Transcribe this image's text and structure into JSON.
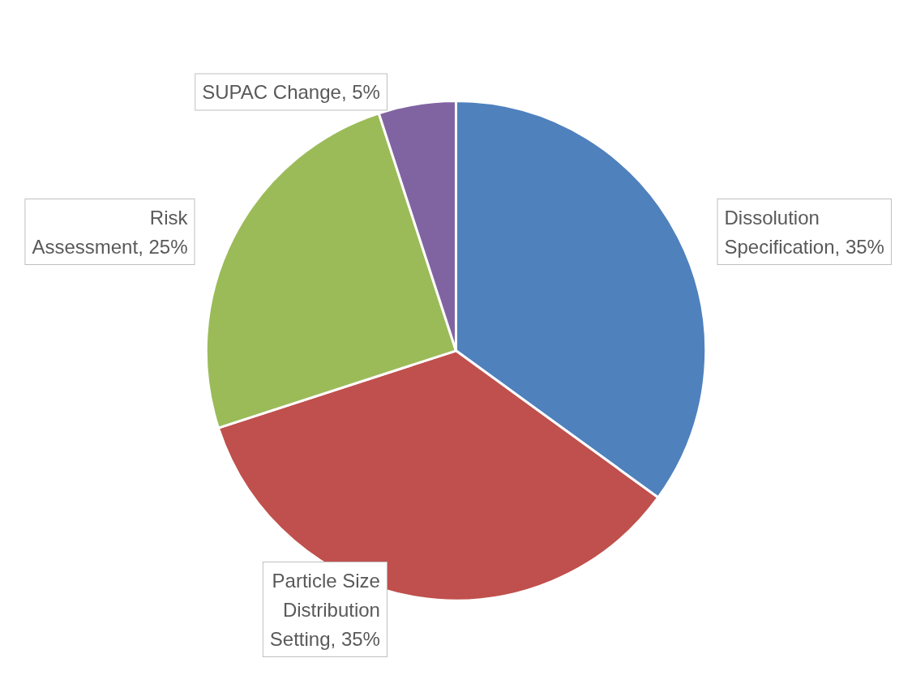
{
  "chart_data": {
    "type": "pie",
    "categories": [
      "Dissolution Specification",
      "Particle Size Distribution Setting",
      "Risk Assessment",
      "SUPAC Change"
    ],
    "values": [
      35,
      35,
      25,
      5
    ],
    "colors": [
      "#4f81bd",
      "#c0504d",
      "#9bbb59",
      "#8064a2"
    ],
    "value_labels": [
      "35%",
      "35%",
      "25%",
      "5%"
    ],
    "legend": false
  }
}
